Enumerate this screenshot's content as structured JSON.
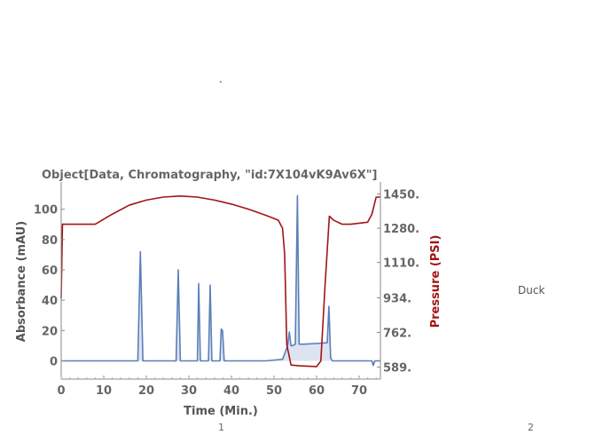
{
  "stray_mark": ".",
  "side_label": "Duck",
  "page_numbers": [
    "1",
    "2"
  ],
  "colors": {
    "absorbance": "#5b7fb8",
    "absorbance_fill": "#dde3f0",
    "pressure": "#a01515",
    "axis_text": "#666666"
  },
  "chart_data": {
    "type": "line",
    "title": "Object[Data, Chromatography, \"id:7X104vK9Av6X\"]",
    "xlabel": "Time  (Min.)",
    "ylabel_left": "Absorbance  (mAU)",
    "ylabel_right": "Pressure  (PSI)",
    "xlim": [
      0,
      75
    ],
    "ylim_left": [
      -12,
      118
    ],
    "ylim_right": [
      530,
      1510
    ],
    "x_ticks": [
      "0",
      "10",
      "20",
      "30",
      "40",
      "50",
      "60",
      "70"
    ],
    "y_ticks_left": [
      "0",
      "20",
      "40",
      "60",
      "80",
      "100"
    ],
    "y_ticks_right": [
      "589.",
      "762.",
      "934.",
      "1110.",
      "1280.",
      "1450."
    ],
    "grid": false,
    "series": [
      {
        "name": "Absorbance",
        "axis": "left",
        "x": [
          0,
          18,
          18.6,
          19.2,
          22,
          27,
          27.5,
          28,
          32,
          32.3,
          32.7,
          34.6,
          35,
          35.4,
          37.3,
          37.6,
          37.9,
          38.3,
          43,
          48,
          52,
          53.2,
          53.6,
          54,
          54.3,
          55,
          55.5,
          55.9,
          56.3,
          57,
          60,
          62.5,
          62.9,
          63.3,
          63.7,
          64.5,
          70,
          73,
          73.3,
          73.7,
          75
        ],
        "y": [
          0,
          0,
          72,
          0,
          0,
          0,
          60,
          0,
          0,
          51,
          0,
          0,
          50,
          0,
          0,
          21,
          20,
          0,
          0,
          0,
          1,
          10,
          19,
          10,
          10,
          11,
          109,
          11,
          11,
          11,
          11.5,
          12,
          36,
          2,
          0,
          0,
          0,
          0,
          -3,
          0,
          0
        ]
      },
      {
        "name": "Pressure",
        "axis": "right",
        "x": [
          0,
          0.3,
          1,
          8,
          12,
          16,
          20,
          24,
          28,
          32,
          36,
          40,
          44,
          48,
          51,
          52,
          52.5,
          53,
          54,
          56,
          60,
          61,
          62,
          63,
          64,
          66,
          68,
          70,
          72,
          73,
          74,
          75
        ],
        "y": [
          930,
          1300,
          1300,
          1300,
          1350,
          1395,
          1420,
          1435,
          1440,
          1435,
          1420,
          1400,
          1375,
          1345,
          1320,
          1280,
          1150,
          700,
          600,
          596,
          592,
          620,
          1000,
          1340,
          1320,
          1300,
          1300,
          1305,
          1310,
          1350,
          1435,
          1435
        ]
      }
    ]
  }
}
